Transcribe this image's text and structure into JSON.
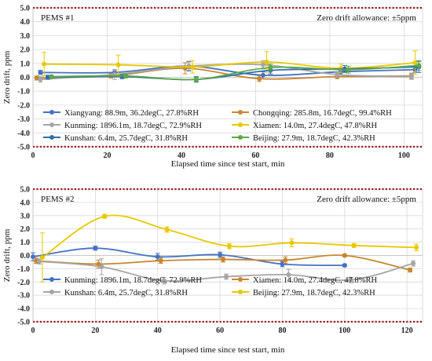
{
  "colors": {
    "Xiangyang": "#4472c4",
    "Chongqing": "#c8862e",
    "Kunming": "#a5a5a5",
    "Xiamen": "#e8c800",
    "Kunshan": "#2f6fad",
    "Beijing": "#5ea845",
    "limit": "#9c1c1c",
    "grid": "#d9d9d9",
    "axis": "#333333"
  },
  "chart_data": [
    {
      "type": "line",
      "panel_label": "PEMS #1",
      "annotation": "Zero drift allowance: ±5ppm",
      "xlabel": "Elapsed time since test start, min",
      "ylabel": "Zero drift, ppm",
      "xlim": [
        0,
        105
      ],
      "ylim": [
        -5,
        5
      ],
      "xticks": [
        "0",
        "20",
        "40",
        "60",
        "80",
        "100"
      ],
      "yticks": [
        "5.0",
        "4.0",
        "3.0",
        "2.0",
        "1.0",
        "0.0",
        "-1.0",
        "-2.0",
        "-3.0",
        "-4.0",
        "-5.0"
      ],
      "limits": [
        5,
        -5
      ],
      "series": [
        {
          "name": "Xiangyang: 88.9m, 36.2degC, 27.8%RH",
          "color_key": "Xiangyang",
          "x": [
            2,
            22,
            42,
            62,
            83,
            103
          ],
          "y": [
            0.35,
            0.35,
            0.8,
            0.15,
            0.4,
            0.55
          ],
          "err": [
            0.15,
            0.2,
            0.35,
            0.25,
            0.2,
            0.2
          ]
        },
        {
          "name": "Chongqing: 285.8m, 16.7degC, 99.4%RH",
          "color_key": "Chongqing",
          "x": [
            1,
            21,
            41,
            61,
            82,
            102
          ],
          "y": [
            -0.05,
            0.1,
            0.65,
            -0.1,
            0.05,
            0.1
          ],
          "err": [
            0.15,
            0.15,
            0.4,
            0.2,
            0.15,
            0.2
          ]
        },
        {
          "name": "Kunming: 1896.1m, 18.7degC, 72.9%RH",
          "color_key": "Kunming",
          "x": [
            2,
            22,
            42,
            62,
            82,
            102
          ],
          "y": [
            -0.15,
            0.2,
            0.8,
            0.9,
            0.2,
            0.05
          ],
          "err": [
            0.2,
            0.35,
            0.3,
            0.3,
            0.2,
            0.2
          ]
        },
        {
          "name": "Xiamen: 14.0m, 27.4degC, 47.8%RH",
          "color_key": "Xiamen",
          "x": [
            3,
            23,
            43,
            63,
            83,
            103
          ],
          "y": [
            0.95,
            0.9,
            0.75,
            1.1,
            0.65,
            1.05
          ],
          "err": [
            0.85,
            0.7,
            0.45,
            0.75,
            0.3,
            0.85
          ]
        },
        {
          "name": "Kunshan: 6.4m, 25.7degC, 31.8%RH",
          "color_key": "Kunshan",
          "x": [
            4,
            24,
            44,
            64,
            84,
            104
          ],
          "y": [
            0.0,
            0.05,
            -0.15,
            0.5,
            0.6,
            0.75
          ],
          "err": [
            0.15,
            0.15,
            0.2,
            0.25,
            0.25,
            0.4
          ]
        },
        {
          "name": "Beijing: 27.9m, 18.7degC, 42.3%RH",
          "color_key": "Beijing",
          "x": [
            5,
            25,
            44,
            64,
            85,
            104
          ],
          "y": [
            0.05,
            0.1,
            -0.15,
            0.7,
            0.55,
            0.85
          ],
          "err": [
            0.1,
            0.15,
            0.15,
            0.25,
            0.25,
            0.35
          ]
        }
      ]
    },
    {
      "type": "line",
      "panel_label": "PEMS #2",
      "annotation": "Zero drift allowance: ±5ppm",
      "xlabel": "Elapsed time since test start, min",
      "ylabel": "Zero drift, ppm",
      "xlim": [
        0,
        125
      ],
      "ylim": [
        -5,
        5
      ],
      "xticks": [
        "0",
        "20",
        "40",
        "60",
        "80",
        "100",
        "120"
      ],
      "yticks": [
        "5.0",
        "4.0",
        "3.0",
        "2.0",
        "1.0",
        "0.0",
        "-1.0",
        "-2.0",
        "-3.0",
        "-4.0",
        "-5.0"
      ],
      "limits": [
        5,
        -5
      ],
      "series": [
        {
          "name": "Kunming: 1896.1m, 18.7degC, 72.9%RH",
          "color_key": "Xiangyang",
          "x": [
            0,
            20,
            40,
            60,
            80,
            100
          ],
          "y": [
            -0.1,
            0.55,
            -0.1,
            0.05,
            -0.65,
            -0.75
          ],
          "err": [
            0.3,
            0.15,
            0.25,
            0.2,
            0.2,
            0.1
          ]
        },
        {
          "name": "Xiamen: 14.0m, 27.4degC, 47.8%RH",
          "color_key": "Chongqing",
          "x": [
            1,
            21,
            41,
            61,
            81,
            100,
            121
          ],
          "y": [
            -0.4,
            -0.65,
            -0.4,
            -0.3,
            -0.35,
            0.0,
            -1.1
          ],
          "err": [
            0.2,
            0.3,
            0.2,
            0.2,
            0.25,
            0.1,
            0.15
          ]
        },
        {
          "name": "Kunshan: 6.4m, 25.7degC, 31.8%RH",
          "color_key": "Kunming",
          "x": [
            2,
            22,
            42,
            62,
            82,
            102,
            122
          ],
          "y": [
            -0.45,
            -0.85,
            -1.9,
            -1.6,
            -1.45,
            -1.85,
            -0.6
          ],
          "err": [
            0.2,
            0.6,
            0.25,
            0.2,
            0.4,
            0.2,
            0.2
          ]
        },
        {
          "name": "Beijing: 27.9m, 18.7degC, 42.3%RH",
          "color_key": "Xiamen",
          "x": [
            3,
            23,
            43,
            63,
            83,
            103,
            123
          ],
          "y": [
            -0.15,
            2.95,
            1.95,
            0.7,
            0.95,
            0.75,
            0.6
          ],
          "err": [
            1.85,
            0.15,
            0.2,
            0.2,
            0.3,
            0.15,
            0.25
          ]
        }
      ]
    }
  ]
}
